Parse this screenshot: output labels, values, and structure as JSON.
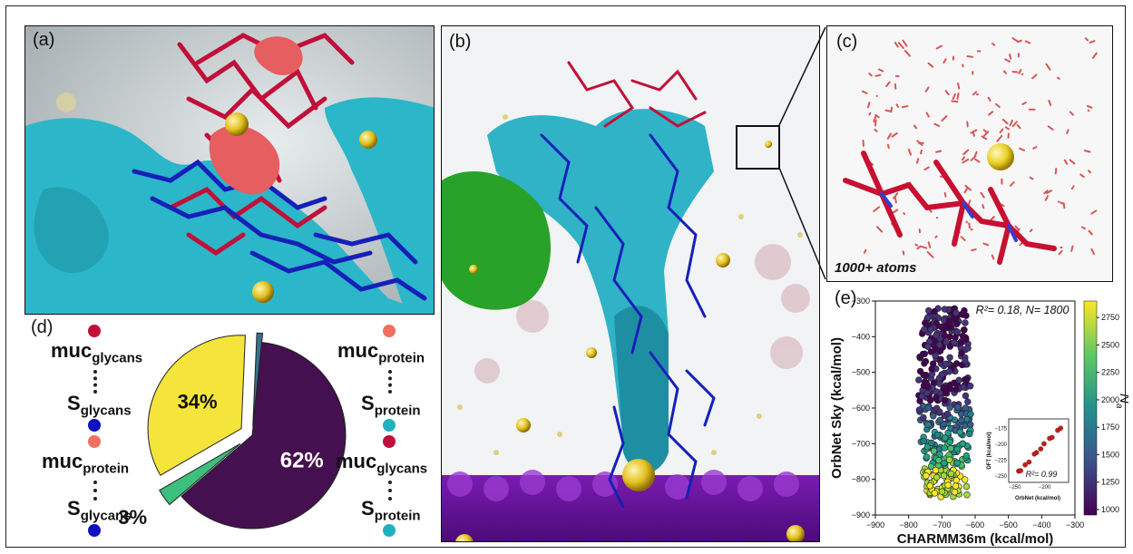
{
  "panels": {
    "a": {
      "label": "(a)"
    },
    "b": {
      "label": "(b)"
    },
    "c": {
      "label": "(c)",
      "caption": "1000+ atoms"
    },
    "d": {
      "label": "(d)"
    },
    "e": {
      "label": "(e)"
    }
  },
  "panel_d": {
    "left_top": {
      "main": "muc",
      "sub": "glycans",
      "bottom_main": "S",
      "bottom_sub": "glycans",
      "dot_top": "#c0103a",
      "dot_bottom": "#1010c0"
    },
    "left_bottom": {
      "main": "muc",
      "sub": "protein",
      "bottom_main": "S",
      "bottom_sub": "glycans",
      "dot_top": "#f07060",
      "dot_bottom": "#1010c0"
    },
    "right_top": {
      "main": "muc",
      "sub": "protein",
      "bottom_main": "S",
      "bottom_sub": "protein",
      "dot_top": "#f07060",
      "dot_bottom": "#20b0c0"
    },
    "right_bottom": {
      "main": "muc",
      "sub": "glycans",
      "bottom_main": "S",
      "bottom_sub": "protein",
      "dot_top": "#c0103a",
      "dot_bottom": "#20b0c0"
    }
  },
  "chart_data": {
    "type": "pie",
    "slices": [
      {
        "label": "34%",
        "value": 34,
        "color": "#f4e43c"
      },
      {
        "label": "1%",
        "value": 1,
        "color": "#3a6f8f"
      },
      {
        "label": "62%",
        "value": 62,
        "color": "#45104f"
      },
      {
        "label": "3%",
        "value": 3,
        "color": "#3dbf7e"
      }
    ]
  },
  "scatter": {
    "annotation": "R²= 0.18, N= 1800",
    "xlabel": "CHARMM36m (kcal/mol)",
    "ylabel": "OrbNet Sky (kcal/mol)",
    "xticks": [
      "−900",
      "−800",
      "−700",
      "−600",
      "−500",
      "−400",
      "−300"
    ],
    "yticks": [
      "−300",
      "−400",
      "−500",
      "−600",
      "−700",
      "−800",
      "−900"
    ],
    "colorbar_label": "N",
    "colorbar_sub": "a",
    "colorbar_ticks": [
      "2750",
      "2500",
      "2250",
      "2000",
      "1750",
      "1500",
      "1250",
      "1000"
    ],
    "inset": {
      "xlabel": "OrbNet (kcal/mol)",
      "ylabel": "DFT (kcal/mol)",
      "annotation": "R²= 0.99",
      "xticks": [
        "−250",
        "−200"
      ],
      "yticks": [
        "−175",
        "−200",
        "−225",
        "−250"
      ]
    }
  }
}
